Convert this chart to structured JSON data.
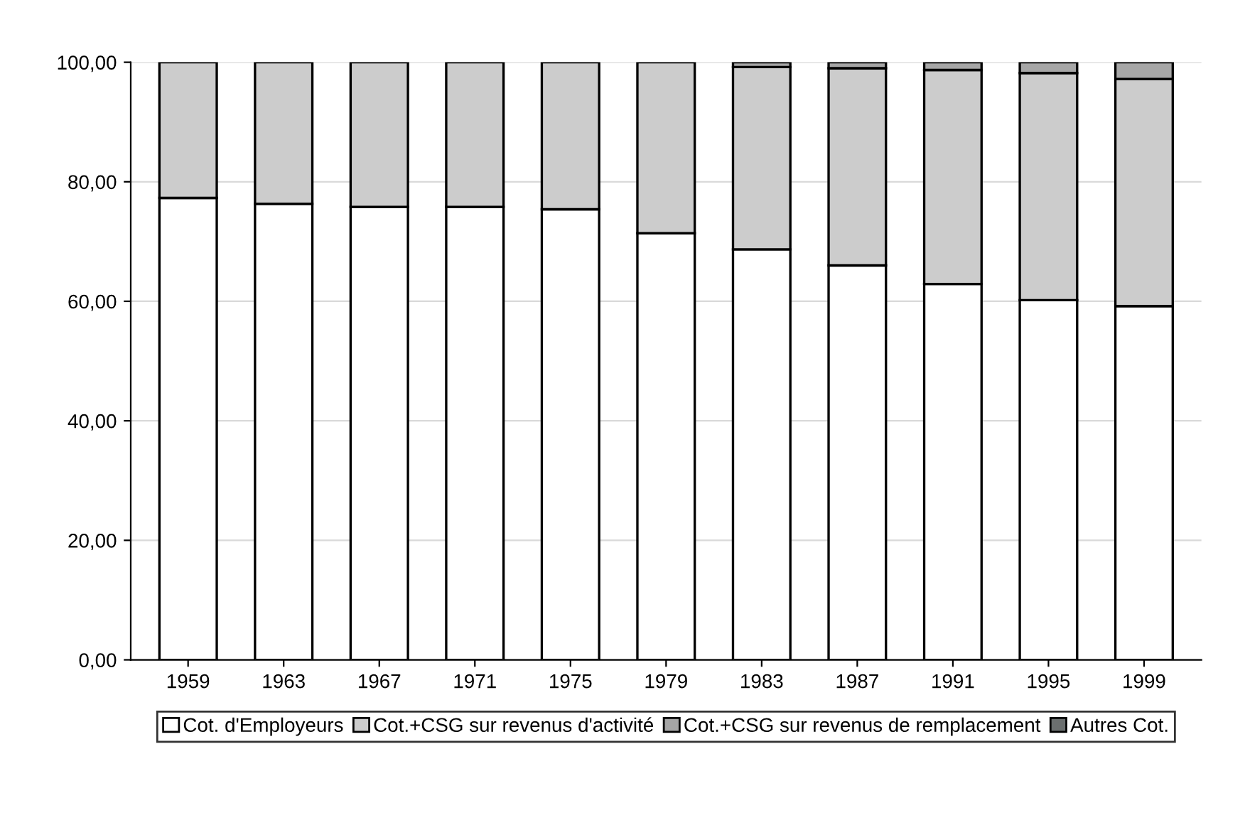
{
  "chart_data": {
    "type": "bar",
    "stacked": true,
    "categories": [
      "1959",
      "1963",
      "1967",
      "1971",
      "1975",
      "1979",
      "1983",
      "1987",
      "1991",
      "1995",
      "1999"
    ],
    "series": [
      {
        "name": "Cot. d'Employeurs",
        "color": "#ffffff",
        "values": [
          77.3,
          76.3,
          75.8,
          75.8,
          75.4,
          71.4,
          68.7,
          66.0,
          62.9,
          60.2,
          59.2
        ]
      },
      {
        "name": "Cot.+CSG sur revenus d'activité",
        "color": "#cccccc",
        "values": [
          22.7,
          23.7,
          24.2,
          24.2,
          24.6,
          28.6,
          30.5,
          33.0,
          35.8,
          38.0,
          38.0
        ]
      },
      {
        "name": "Cot.+CSG sur revenus de remplacement",
        "color": "#a6a6a6",
        "values": [
          0,
          0,
          0,
          0,
          0,
          0,
          0.8,
          1.0,
          1.3,
          1.8,
          2.8
        ]
      },
      {
        "name": "Autres Cot.",
        "color": "#6b6f6f",
        "values": [
          0,
          0,
          0,
          0,
          0,
          0,
          0,
          0,
          0,
          0,
          0
        ]
      }
    ],
    "ylim": [
      0,
      100
    ],
    "yticks": [
      {
        "value": 0,
        "label": "0,00"
      },
      {
        "value": 20,
        "label": "20,00"
      },
      {
        "value": 40,
        "label": "40,00"
      },
      {
        "value": 60,
        "label": "60,00"
      },
      {
        "value": 80,
        "label": "80,00"
      },
      {
        "value": 100,
        "label": "100,00"
      }
    ],
    "grid": "y",
    "legend": "bottom"
  }
}
